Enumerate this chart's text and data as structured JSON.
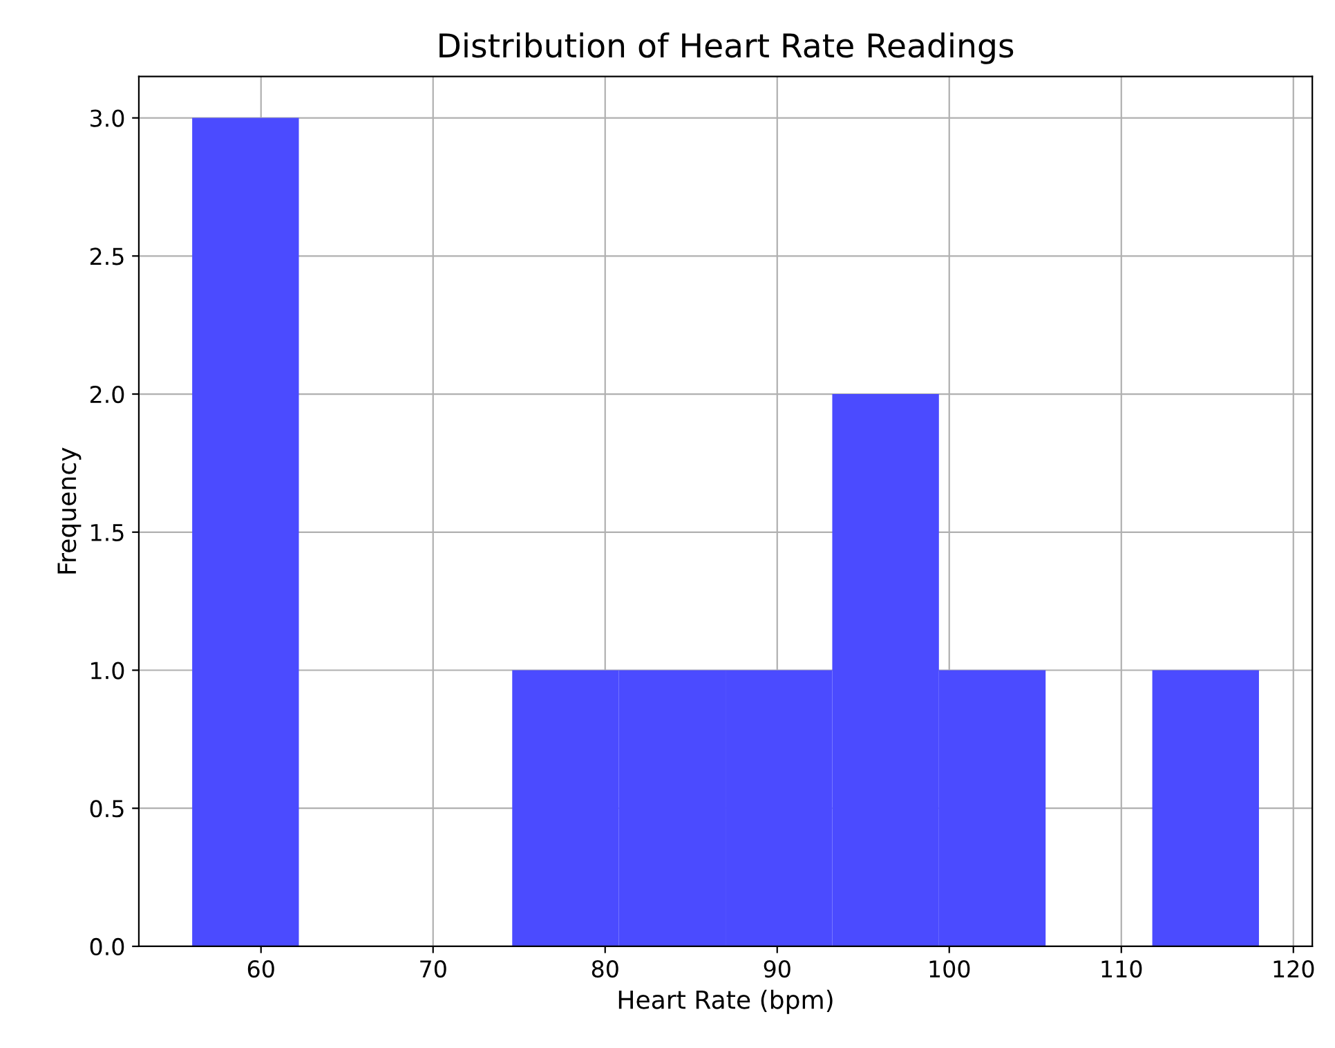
{
  "chart_data": {
    "type": "histogram",
    "title": "Distribution of Heart Rate Readings",
    "xlabel": "Heart Rate (bpm)",
    "ylabel": "Frequency",
    "bins": [
      56,
      62.2,
      68.4,
      74.6,
      80.8,
      87,
      93.2,
      99.4,
      105.6,
      111.8,
      118
    ],
    "values": [
      3,
      0,
      0,
      1,
      1,
      1,
      2,
      1,
      0,
      1
    ],
    "color": "#4b4bff",
    "xlim": [
      52.9,
      121.1
    ],
    "xticks": [
      60,
      70,
      80,
      90,
      100,
      110,
      120
    ],
    "ylim": [
      0,
      3.15
    ],
    "yticks": [
      {
        "value": 0,
        "label": "0.0"
      },
      {
        "value": 0.5,
        "label": "0.5"
      },
      {
        "value": 1,
        "label": "1.0"
      },
      {
        "value": 1.5,
        "label": "1.5"
      },
      {
        "value": 2,
        "label": "2.0"
      },
      {
        "value": 2.5,
        "label": "2.5"
      },
      {
        "value": 3,
        "label": "3.0"
      }
    ],
    "grid": true
  }
}
